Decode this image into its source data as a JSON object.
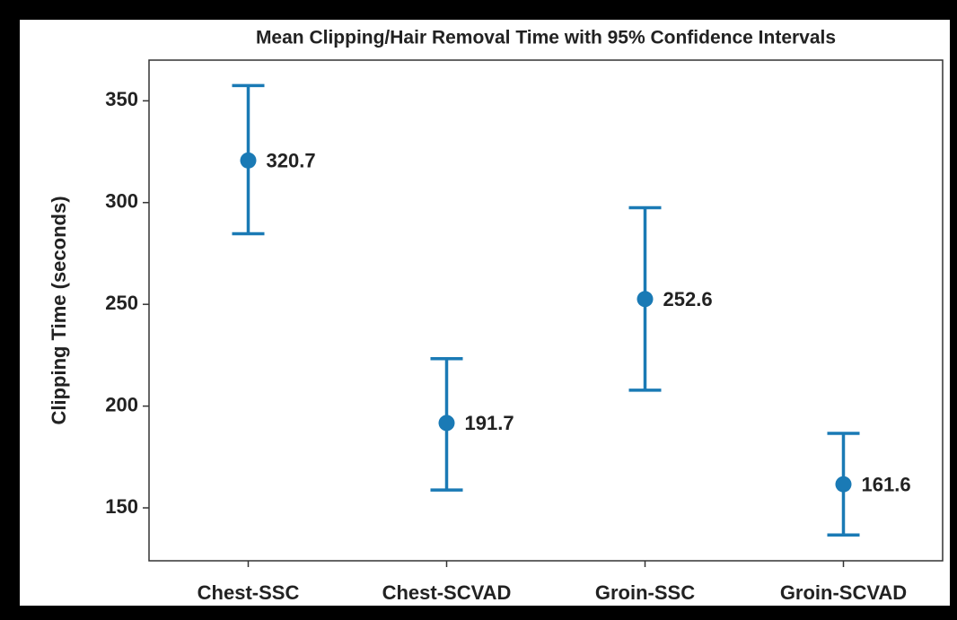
{
  "chart_data": {
    "type": "errorbar",
    "title": "Mean Clipping/Hair Removal Time with 95% Confidence Intervals",
    "y_label": "Clipping Time (seconds)",
    "categories": [
      "Chest-SSC",
      "Chest-SCVAD",
      "Groin-SSC",
      "Groin-SCVAD"
    ],
    "values": [
      320.7,
      191.7,
      252.6,
      161.6
    ],
    "lower": [
      284.7,
      158.8,
      207.8,
      136.7
    ],
    "upper": [
      357.5,
      223.3,
      297.5,
      186.6
    ],
    "color": "#1a7ab5",
    "ylim": [
      124,
      370
    ],
    "yticks": [
      150,
      200,
      250,
      300,
      350
    ],
    "grid": false
  }
}
